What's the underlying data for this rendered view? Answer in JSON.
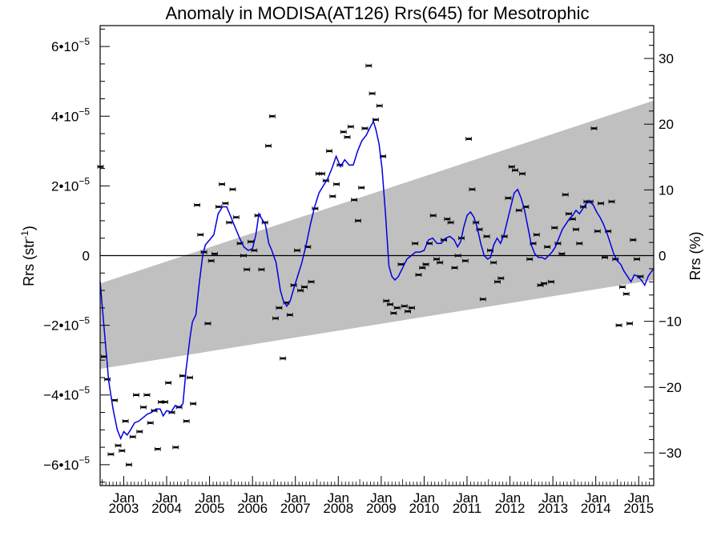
{
  "chart_data": {
    "type": "scatter",
    "title": "Anomaly in MODISA(AT126) Rrs(645) for Mesotrophic",
    "ylabel_left": {
      "main": "Rrs (str",
      "sup": "-1",
      "close": ")"
    },
    "ylabel_right": "Rrs (%)",
    "xlim": [
      2002.45,
      2015.35
    ],
    "ylim": [
      -6.6e-05,
      6.6e-05
    ],
    "y2lim": [
      -35,
      35
    ],
    "left_ticks": [
      {
        "value": 6e-05,
        "mantissa": "6",
        "base": "•10",
        "exp": "−5"
      },
      {
        "value": 4e-05,
        "mantissa": "4",
        "base": "•10",
        "exp": "−5"
      },
      {
        "value": 2e-05,
        "mantissa": "2",
        "base": "•10",
        "exp": "−5"
      },
      {
        "value": 0,
        "mantissa": "0",
        "base": "",
        "exp": ""
      },
      {
        "value": -2e-05,
        "mantissa": "−2",
        "base": "•10",
        "exp": "−5"
      },
      {
        "value": -4e-05,
        "mantissa": "−4",
        "base": "•10",
        "exp": "−5"
      },
      {
        "value": -6e-05,
        "mantissa": "−6",
        "base": "•10",
        "exp": "−5"
      }
    ],
    "right_ticks": [
      {
        "value": 30,
        "label": "30"
      },
      {
        "value": 20,
        "label": "20"
      },
      {
        "value": 10,
        "label": "10"
      },
      {
        "value": 0,
        "label": "0"
      },
      {
        "value": -10,
        "label": "−10"
      },
      {
        "value": -20,
        "label": "−20"
      },
      {
        "value": -30,
        "label": "−30"
      }
    ],
    "x_ticks": [
      {
        "value": 2003,
        "month": "Jan",
        "year": "2003"
      },
      {
        "value": 2004,
        "month": "Jan",
        "year": "2004"
      },
      {
        "value": 2005,
        "month": "Jan",
        "year": "2005"
      },
      {
        "value": 2006,
        "month": "Jan",
        "year": "2006"
      },
      {
        "value": 2007,
        "month": "Jan",
        "year": "2007"
      },
      {
        "value": 2008,
        "month": "Jan",
        "year": "2008"
      },
      {
        "value": 2009,
        "month": "Jan",
        "year": "2009"
      },
      {
        "value": 2010,
        "month": "Jan",
        "year": "2010"
      },
      {
        "value": 2011,
        "month": "Jan",
        "year": "2011"
      },
      {
        "value": 2012,
        "month": "Jan",
        "year": "2012"
      },
      {
        "value": 2013,
        "month": "Jan",
        "year": "2013"
      },
      {
        "value": 2014,
        "month": "Jan",
        "year": "2014"
      },
      {
        "value": 2015,
        "month": "Jan",
        "year": "2015"
      }
    ],
    "band": {
      "color": "#c0c0c0",
      "lower": [
        [
          2002.45,
          -3.25e-05
        ],
        [
          2015.35,
          -7e-06
        ]
      ],
      "upper": [
        [
          2002.45,
          -8e-06
        ],
        [
          2015.35,
          4.45e-05
        ]
      ]
    },
    "zero_line": 0,
    "colors": {
      "line": "#0000dd",
      "points": "#000000"
    },
    "points": [
      [
        2002.46,
        2.55e-05
      ],
      [
        2002.54,
        -2.9e-05
      ],
      [
        2002.62,
        -3.55e-05
      ],
      [
        2002.7,
        -5.7e-05
      ],
      [
        2002.79,
        -4.15e-05
      ],
      [
        2002.87,
        -5.45e-05
      ],
      [
        2002.96,
        -5.6e-05
      ],
      [
        2003.04,
        -4.75e-05
      ],
      [
        2003.12,
        -6e-05
      ],
      [
        2003.21,
        -5.2e-05
      ],
      [
        2003.29,
        -4e-05
      ],
      [
        2003.37,
        -5.05e-05
      ],
      [
        2003.46,
        -4.35e-05
      ],
      [
        2003.54,
        -4e-05
      ],
      [
        2003.62,
        -4.8e-05
      ],
      [
        2003.71,
        -4.45e-05
      ],
      [
        2003.79,
        -5.55e-05
      ],
      [
        2003.87,
        -4.2e-05
      ],
      [
        2003.96,
        -4.2e-05
      ],
      [
        2004.04,
        -3.65e-05
      ],
      [
        2004.12,
        -4.5e-05
      ],
      [
        2004.21,
        -5.5e-05
      ],
      [
        2004.29,
        -4.35e-05
      ],
      [
        2004.37,
        -3.45e-05
      ],
      [
        2004.46,
        -4.75e-05
      ],
      [
        2004.54,
        -3.5e-05
      ],
      [
        2004.62,
        -4.25e-05
      ],
      [
        2004.71,
        1.45e-05
      ],
      [
        2004.79,
        6e-06
      ],
      [
        2004.87,
        1e-06
      ],
      [
        2004.96,
        -1.95e-05
      ],
      [
        2005.04,
        -1.5e-06
      ],
      [
        2005.12,
        5e-07
      ],
      [
        2005.21,
        1.4e-05
      ],
      [
        2005.29,
        2.05e-05
      ],
      [
        2005.37,
        1.5e-05
      ],
      [
        2005.46,
        9.5e-06
      ],
      [
        2005.54,
        1.9e-05
      ],
      [
        2005.62,
        1.1e-05
      ],
      [
        2005.71,
        3.5e-06
      ],
      [
        2005.79,
        0.0
      ],
      [
        2005.87,
        -4e-06
      ],
      [
        2005.96,
        4e-06
      ],
      [
        2006.04,
        1.5e-06
      ],
      [
        2006.12,
        1.15e-05
      ],
      [
        2006.21,
        -4e-06
      ],
      [
        2006.29,
        9.5e-06
      ],
      [
        2006.37,
        3.15e-05
      ],
      [
        2006.46,
        4e-05
      ],
      [
        2006.54,
        -1.8e-05
      ],
      [
        2006.62,
        -1.5e-05
      ],
      [
        2006.71,
        -2.95e-05
      ],
      [
        2006.79,
        -1.35e-05
      ],
      [
        2006.87,
        -1.7e-05
      ],
      [
        2006.96,
        -8.5e-06
      ],
      [
        2007.04,
        1.5e-06
      ],
      [
        2007.12,
        -1e-05
      ],
      [
        2007.21,
        -9e-06
      ],
      [
        2007.29,
        2.5e-06
      ],
      [
        2007.37,
        -7.5e-06
      ],
      [
        2007.46,
        1.35e-05
      ],
      [
        2007.54,
        2.35e-05
      ],
      [
        2007.62,
        2.35e-05
      ],
      [
        2007.71,
        2.15e-05
      ],
      [
        2007.79,
        3e-05
      ],
      [
        2007.87,
        1.7e-05
      ],
      [
        2007.96,
        2.05e-05
      ],
      [
        2008.04,
        2.6e-05
      ],
      [
        2008.12,
        3.55e-05
      ],
      [
        2008.21,
        3.4e-05
      ],
      [
        2008.29,
        3.7e-05
      ],
      [
        2008.37,
        1.6e-05
      ],
      [
        2008.46,
        1e-05
      ],
      [
        2008.54,
        1.95e-05
      ],
      [
        2008.62,
        3.65e-05
      ],
      [
        2008.71,
        5.45e-05
      ],
      [
        2008.79,
        4.65e-05
      ],
      [
        2008.87,
        3.9e-05
      ],
      [
        2008.96,
        4.3e-05
      ],
      [
        2009.04,
        2.85e-05
      ],
      [
        2009.12,
        -1.3e-05
      ],
      [
        2009.21,
        -1.4e-05
      ],
      [
        2009.29,
        -1.65e-05
      ],
      [
        2009.37,
        -1.5e-05
      ],
      [
        2009.46,
        -2.5e-06
      ],
      [
        2009.54,
        -1.45e-05
      ],
      [
        2009.62,
        -1.6e-05
      ],
      [
        2009.71,
        -1.5e-05
      ],
      [
        2009.79,
        3.5e-06
      ],
      [
        2009.87,
        -5.5e-06
      ],
      [
        2009.96,
        -3.5e-06
      ],
      [
        2010.04,
        -2.5e-06
      ],
      [
        2010.12,
        3.5e-06
      ],
      [
        2010.21,
        1.15e-05
      ],
      [
        2010.29,
        -1e-06
      ],
      [
        2010.37,
        -2e-06
      ],
      [
        2010.46,
        4.5e-06
      ],
      [
        2010.54,
        1.05e-05
      ],
      [
        2010.62,
        9.5e-06
      ],
      [
        2010.71,
        -3.5e-06
      ],
      [
        2010.79,
        0.0
      ],
      [
        2010.87,
        5e-06
      ],
      [
        2010.96,
        -1.5e-06
      ],
      [
        2011.04,
        3.35e-05
      ],
      [
        2011.12,
        1.9e-05
      ],
      [
        2011.21,
        9.5e-06
      ],
      [
        2011.29,
        7.5e-06
      ],
      [
        2011.37,
        -1.25e-05
      ],
      [
        2011.46,
        5.5e-06
      ],
      [
        2011.54,
        1.5e-06
      ],
      [
        2011.62,
        -2e-06
      ],
      [
        2011.71,
        -7.5e-06
      ],
      [
        2011.79,
        -6.5e-06
      ],
      [
        2011.87,
        5.5e-06
      ],
      [
        2011.96,
        1.65e-05
      ],
      [
        2012.04,
        2.55e-05
      ],
      [
        2012.12,
        2.45e-05
      ],
      [
        2012.21,
        1.3e-05
      ],
      [
        2012.29,
        2.35e-05
      ],
      [
        2012.37,
        1.4e-05
      ],
      [
        2012.46,
        -1e-06
      ],
      [
        2012.54,
        3.5e-06
      ],
      [
        2012.62,
        6e-06
      ],
      [
        2012.71,
        -8.5e-06
      ],
      [
        2012.79,
        -8e-06
      ],
      [
        2012.87,
        2.5e-06
      ],
      [
        2012.96,
        -7.5e-06
      ],
      [
        2013.04,
        8e-06
      ],
      [
        2013.12,
        3.5e-06
      ],
      [
        2013.21,
        5e-07
      ],
      [
        2013.29,
        1.75e-05
      ],
      [
        2013.37,
        1.2e-05
      ],
      [
        2013.46,
        1.05e-05
      ],
      [
        2013.54,
        7.5e-06
      ],
      [
        2013.62,
        3.5e-06
      ],
      [
        2013.71,
        1.4e-05
      ],
      [
        2013.79,
        1.55e-05
      ],
      [
        2013.87,
        1.55e-05
      ],
      [
        2013.96,
        3.65e-05
      ],
      [
        2014.04,
        7e-06
      ],
      [
        2014.12,
        1.5e-05
      ],
      [
        2014.21,
        -5e-07
      ],
      [
        2014.29,
        7e-06
      ],
      [
        2014.37,
        1.55e-05
      ],
      [
        2014.46,
        -1e-06
      ],
      [
        2014.54,
        -2e-05
      ],
      [
        2014.62,
        -9e-06
      ],
      [
        2014.71,
        -1.1e-05
      ],
      [
        2014.79,
        -1.95e-05
      ],
      [
        2014.87,
        4.5e-06
      ],
      [
        2014.96,
        -1e-06
      ],
      [
        2015.04,
        -6e-06
      ]
    ],
    "line": [
      [
        2002.45,
        -7.5e-06
      ],
      [
        2002.55,
        -2.2e-05
      ],
      [
        2002.65,
        -3.6e-05
      ],
      [
        2002.75,
        -4.4e-05
      ],
      [
        2002.85,
        -5e-05
      ],
      [
        2002.93,
        -5.25e-05
      ],
      [
        2003.0,
        -5.05e-05
      ],
      [
        2003.08,
        -5.15e-05
      ],
      [
        2003.16,
        -5e-05
      ],
      [
        2003.25,
        -4.8e-05
      ],
      [
        2003.35,
        -4.75e-05
      ],
      [
        2003.45,
        -4.65e-05
      ],
      [
        2003.55,
        -4.55e-05
      ],
      [
        2003.65,
        -4.5e-05
      ],
      [
        2003.75,
        -4.4e-05
      ],
      [
        2003.85,
        -4.4e-05
      ],
      [
        2003.92,
        -4.6e-05
      ],
      [
        2004.0,
        -4.45e-05
      ],
      [
        2004.1,
        -4.5e-05
      ],
      [
        2004.2,
        -4.3e-05
      ],
      [
        2004.3,
        -4.35e-05
      ],
      [
        2004.38,
        -4.25e-05
      ],
      [
        2004.45,
        -3.3e-05
      ],
      [
        2004.55,
        -2.3e-05
      ],
      [
        2004.6,
        -1.9e-05
      ],
      [
        2004.68,
        -1.7e-05
      ],
      [
        2004.76,
        -8e-06
      ],
      [
        2004.84,
        0.0
      ],
      [
        2004.9,
        3e-06
      ],
      [
        2005.0,
        4.5e-06
      ],
      [
        2005.1,
        6e-06
      ],
      [
        2005.2,
        1.2e-05
      ],
      [
        2005.3,
        1.4e-05
      ],
      [
        2005.4,
        1.4e-05
      ],
      [
        2005.5,
        1.1e-05
      ],
      [
        2005.6,
        8e-06
      ],
      [
        2005.7,
        5e-06
      ],
      [
        2005.8,
        2.5e-06
      ],
      [
        2005.9,
        1.5e-06
      ],
      [
        2006.0,
        2e-06
      ],
      [
        2006.08,
        6e-06
      ],
      [
        2006.15,
        1.2e-05
      ],
      [
        2006.22,
        1.05e-05
      ],
      [
        2006.3,
        9e-06
      ],
      [
        2006.38,
        3.5e-06
      ],
      [
        2006.45,
        1.5e-06
      ],
      [
        2006.55,
        -2e-06
      ],
      [
        2006.65,
        -1e-05
      ],
      [
        2006.72,
        -1.3e-05
      ],
      [
        2006.8,
        -1.45e-05
      ],
      [
        2006.88,
        -1.3e-05
      ],
      [
        2006.96,
        -9.5e-06
      ],
      [
        2007.05,
        -6e-06
      ],
      [
        2007.15,
        -2e-06
      ],
      [
        2007.25,
        3e-06
      ],
      [
        2007.35,
        9e-06
      ],
      [
        2007.45,
        1.4e-05
      ],
      [
        2007.55,
        1.8e-05
      ],
      [
        2007.65,
        2e-05
      ],
      [
        2007.75,
        2.2e-05
      ],
      [
        2007.85,
        2.5e-05
      ],
      [
        2007.95,
        2.85e-05
      ],
      [
        2008.05,
        2.55e-05
      ],
      [
        2008.15,
        2.75e-05
      ],
      [
        2008.25,
        2.6e-05
      ],
      [
        2008.35,
        2.6e-05
      ],
      [
        2008.45,
        3e-05
      ],
      [
        2008.55,
        3.3e-05
      ],
      [
        2008.65,
        3.45e-05
      ],
      [
        2008.75,
        3.7e-05
      ],
      [
        2008.82,
        3.85e-05
      ],
      [
        2008.88,
        3.6e-05
      ],
      [
        2008.95,
        3.2e-05
      ],
      [
        2009.02,
        2.5e-05
      ],
      [
        2009.1,
        1.2e-05
      ],
      [
        2009.18,
        -3e-06
      ],
      [
        2009.25,
        -6e-06
      ],
      [
        2009.32,
        -7e-06
      ],
      [
        2009.4,
        -6e-06
      ],
      [
        2009.5,
        -3.5e-06
      ],
      [
        2009.6,
        -1e-06
      ],
      [
        2009.7,
        0.0
      ],
      [
        2009.8,
        1e-06
      ],
      [
        2009.9,
        1e-06
      ],
      [
        2010.0,
        1.5e-06
      ],
      [
        2010.1,
        4.5e-06
      ],
      [
        2010.2,
        5e-06
      ],
      [
        2010.3,
        3.5e-06
      ],
      [
        2010.4,
        3.5e-06
      ],
      [
        2010.5,
        5e-06
      ],
      [
        2010.6,
        5.5e-06
      ],
      [
        2010.7,
        4.5e-06
      ],
      [
        2010.78,
        2.5e-06
      ],
      [
        2010.85,
        4e-06
      ],
      [
        2010.92,
        8e-06
      ],
      [
        2011.0,
        1.15e-05
      ],
      [
        2011.08,
        1.25e-05
      ],
      [
        2011.16,
        1.1e-05
      ],
      [
        2011.24,
        8e-06
      ],
      [
        2011.32,
        3.5e-06
      ],
      [
        2011.4,
        0.0
      ],
      [
        2011.48,
        -1e-06
      ],
      [
        2011.55,
        -5e-07
      ],
      [
        2011.62,
        3e-06
      ],
      [
        2011.7,
        5e-06
      ],
      [
        2011.78,
        3.5e-06
      ],
      [
        2011.86,
        6e-06
      ],
      [
        2011.94,
        1e-05
      ],
      [
        2012.02,
        1.4e-05
      ],
      [
        2012.1,
        1.8e-05
      ],
      [
        2012.18,
        1.9e-05
      ],
      [
        2012.26,
        1.65e-05
      ],
      [
        2012.34,
        1.3e-05
      ],
      [
        2012.42,
        8e-06
      ],
      [
        2012.5,
        3e-06
      ],
      [
        2012.58,
        5e-07
      ],
      [
        2012.66,
        -5e-07
      ],
      [
        2012.74,
        -5e-07
      ],
      [
        2012.82,
        -1e-06
      ],
      [
        2012.9,
        0.0
      ],
      [
        2012.98,
        1e-06
      ],
      [
        2013.06,
        2.5e-06
      ],
      [
        2013.14,
        5e-06
      ],
      [
        2013.22,
        7.5e-06
      ],
      [
        2013.3,
        9e-06
      ],
      [
        2013.38,
        1.05e-05
      ],
      [
        2013.46,
        1.15e-05
      ],
      [
        2013.54,
        1.3e-05
      ],
      [
        2013.62,
        1.2e-05
      ],
      [
        2013.7,
        1.35e-05
      ],
      [
        2013.78,
        1.5e-05
      ],
      [
        2013.86,
        1.55e-05
      ],
      [
        2013.94,
        1.45e-05
      ],
      [
        2014.02,
        1.25e-05
      ],
      [
        2014.1,
        1.1e-05
      ],
      [
        2014.18,
        9e-06
      ],
      [
        2014.26,
        6.5e-06
      ],
      [
        2014.34,
        3.5e-06
      ],
      [
        2014.42,
        5e-07
      ],
      [
        2014.5,
        -1.5e-06
      ],
      [
        2014.58,
        -2.5e-06
      ],
      [
        2014.66,
        -4.5e-06
      ],
      [
        2014.74,
        -6e-06
      ],
      [
        2014.82,
        -7.5e-06
      ],
      [
        2014.9,
        -5.5e-06
      ],
      [
        2014.98,
        -6e-06
      ],
      [
        2015.06,
        -7e-06
      ],
      [
        2015.14,
        -8.5e-06
      ],
      [
        2015.22,
        -6e-06
      ],
      [
        2015.3,
        -4.5e-06
      ],
      [
        2015.35,
        -3.8e-06
      ]
    ]
  }
}
